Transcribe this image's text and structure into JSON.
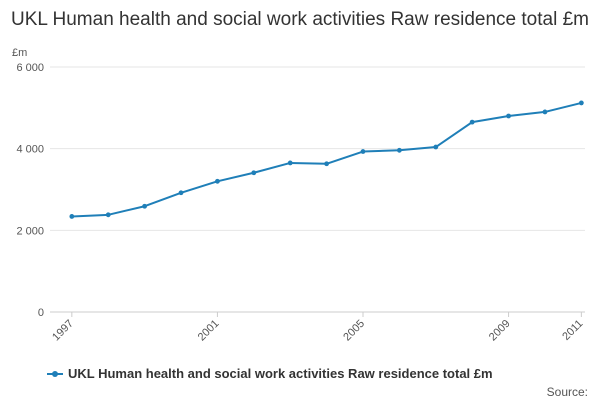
{
  "chart_data": {
    "type": "line",
    "title": "UKL Human health and social work activities Raw residence total £m",
    "ylabel": "£m",
    "x": [
      1997,
      1998,
      1999,
      2000,
      2001,
      2002,
      2003,
      2004,
      2005,
      2006,
      2007,
      2008,
      2009,
      2010,
      2011
    ],
    "xticks": [
      1997,
      2001,
      2005,
      2009,
      2011
    ],
    "xtick_labels": [
      "1997",
      "2001",
      "2005",
      "2009",
      "2011"
    ],
    "yticks": [
      0,
      2000,
      4000,
      6000
    ],
    "ytick_labels": [
      "0",
      "2 000",
      "4 000",
      "6 000"
    ],
    "ylim": [
      0,
      6000
    ],
    "xlim": [
      1997,
      2011
    ],
    "grid": true,
    "legend_position": "bottom",
    "series": [
      {
        "name": "UKL Human health and social work activities Raw residence total £m",
        "color": "#1f7fb8",
        "values": [
          2340,
          2380,
          2590,
          2920,
          3200,
          3410,
          3650,
          3630,
          3930,
          3960,
          4040,
          4650,
          4800,
          4900,
          5120
        ]
      }
    ]
  },
  "footer": {
    "source": "Source:"
  }
}
